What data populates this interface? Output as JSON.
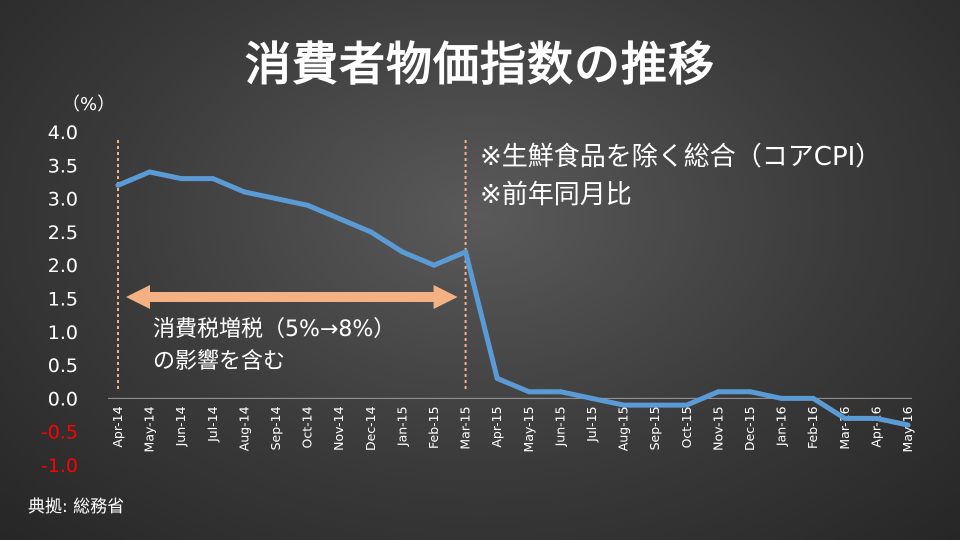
{
  "title": "消費者物価指数の推移",
  "unit_label": "（%）",
  "notes": [
    "※生鮮食品を除く総合（コアCPI）",
    "※前年同月比"
  ],
  "annotation": {
    "lines": [
      "消費税増税（5%→8%）",
      "の影響を含む"
    ],
    "arrow_color": "#F4B183"
  },
  "source": "典拠: 総務省",
  "colors": {
    "line": "#5B9BD5",
    "negative_tick": "#FF0000",
    "marker_line": "#F4B183"
  },
  "chart_data": {
    "type": "line",
    "x": [
      "Apr-14",
      "May-14",
      "Jun-14",
      "Jul-14",
      "Aug-14",
      "Sep-14",
      "Oct-14",
      "Nov-14",
      "Dec-14",
      "Jan-15",
      "Feb-15",
      "Mar-15",
      "Apr-15",
      "May-15",
      "Jun-15",
      "Jul-15",
      "Aug-15",
      "Sep-15",
      "Oct-15",
      "Nov-15",
      "Dec-15",
      "Jan-16",
      "Feb-16",
      "Mar-16",
      "Apr-16",
      "May-16"
    ],
    "values": [
      3.2,
      3.4,
      3.3,
      3.3,
      3.1,
      3.0,
      2.9,
      2.7,
      2.5,
      2.2,
      2.0,
      2.2,
      0.3,
      0.1,
      0.1,
      0.0,
      -0.1,
      -0.1,
      -0.1,
      0.1,
      0.1,
      0.0,
      0.0,
      -0.3,
      -0.3,
      -0.4
    ],
    "yticks": [
      "4.0",
      "3.5",
      "3.0",
      "2.5",
      "2.0",
      "1.5",
      "1.0",
      "0.5",
      "0.0",
      "-0.5",
      "-1.0"
    ],
    "ylim": [
      -1.0,
      4.0
    ],
    "markers": [
      "Apr-14",
      "Mar-15"
    ],
    "grid": false
  }
}
